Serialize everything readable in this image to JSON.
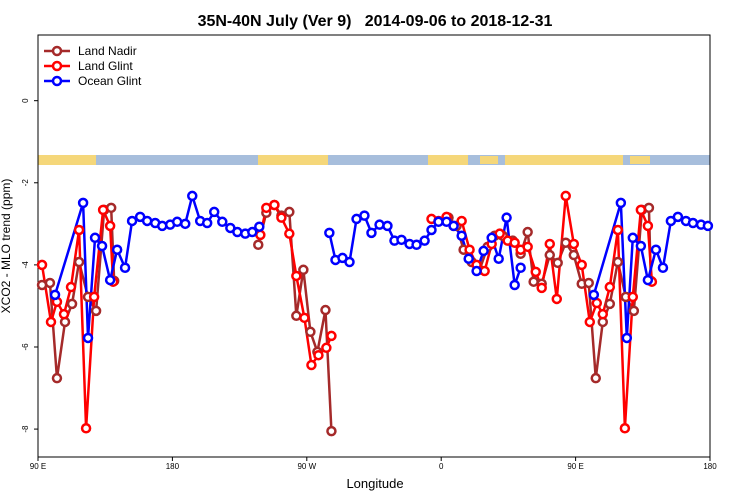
{
  "chart_data": {
    "type": "line",
    "title": "35N-40N July (Ver 9)   2014-09-06 to 2018-12-31",
    "x_label": "Longitude",
    "y_label": "XCO2 - MLO trend (ppm)",
    "xlim": [
      90,
      540
    ],
    "ylim": [
      -8.68,
      1.6
    ],
    "xticks": [
      {
        "value": 90,
        "label": "90 E"
      },
      180,
      {
        "value": 270,
        "label": "90 W"
      },
      {
        "value": 360,
        "label": "0"
      },
      {
        "value": 450,
        "label": "90 E"
      },
      {
        "value": 540,
        "label": "180"
      }
    ],
    "yticks": [
      0,
      -2,
      -4,
      -6,
      -8
    ],
    "legend": "top-left",
    "series": [
      {
        "name": "Land Nadir",
        "color": "#a52a2a",
        "x": [
          92.7,
          98.0,
          102.7,
          108.1,
          112.8,
          117.5,
          123.5,
          128.9,
          134.3,
          139.0,
          141.0,
          200,
          237.5,
          242.9,
          248.3,
          253.0,
          258.3,
          263.0,
          267.7,
          272.4,
          277.1,
          282.5,
          286.5,
          360,
          364.9,
          370.3,
          375.0,
          380.4,
          385.7,
          391.1,
          395.8,
          401.2,
          407.9,
          413.2,
          417.9,
          421.9,
          427.3,
          432.7,
          438.0,
          443.4,
          448.8,
          454.1,
          458.8,
          463.5,
          468.2,
          472.9,
          478.3,
          483.6,
          489.0,
          494.4,
          499.1,
          500.4
        ],
        "values": [
          -4.49,
          -4.44,
          -6.76,
          -5.39,
          -4.95,
          -3.93,
          -4.78,
          -5.12,
          -2.66,
          -2.61,
          -4.39,
          null,
          -3.51,
          -2.73,
          -2.54,
          -2.8,
          -2.71,
          -5.24,
          -4.12,
          -5.63,
          -6.12,
          -5.1,
          -8.05,
          null,
          -2.85,
          -3.05,
          -3.63,
          -3.93,
          -4.12,
          -3.56,
          -3.29,
          -3.29,
          -3.41,
          -3.73,
          -3.2,
          -4.41,
          -4.46,
          -3.76,
          -3.95,
          -3.46,
          -3.76,
          -4.46,
          -4.44,
          -6.76,
          -5.39,
          -4.95,
          -3.93,
          -4.78,
          -5.12,
          -2.66,
          -2.61,
          -4.39
        ]
      },
      {
        "name": "Land Glint",
        "color": "#ff0000",
        "x": [
          92.7,
          98.7,
          102.7,
          107.4,
          112.1,
          117.5,
          122.2,
          127.6,
          133.6,
          138.3,
          140.3,
          200,
          238.9,
          242.9,
          248.3,
          253.0,
          258.3,
          263.0,
          268.4,
          273.1,
          277.8,
          283.1,
          286.5,
          320,
          353.5,
          358.2,
          363.6,
          368.3,
          373.7,
          379.0,
          383.7,
          389.1,
          393.8,
          399.2,
          404.5,
          409.2,
          413.2,
          417.9,
          423.3,
          427.3,
          432.7,
          437.4,
          443.4,
          448.8,
          454.1,
          459.5,
          464.2,
          468.2,
          472.9,
          478.3,
          483.0,
          488.3,
          493.7,
          498.4,
          501.1
        ],
        "values": [
          -4.0,
          -5.39,
          -4.9,
          -5.2,
          -4.54,
          -3.15,
          -7.98,
          -4.78,
          -2.66,
          -3.05,
          -4.41,
          null,
          -3.27,
          -2.61,
          -2.54,
          -2.85,
          -3.24,
          -4.27,
          -5.29,
          -6.44,
          -6.2,
          -6.02,
          -5.73,
          null,
          -2.88,
          -2.93,
          -2.83,
          -3.05,
          -2.93,
          -3.63,
          -4.0,
          -4.15,
          -3.49,
          -3.24,
          -3.41,
          -3.46,
          -3.63,
          -3.56,
          -4.17,
          -4.56,
          -3.49,
          -4.83,
          -2.32,
          -3.49,
          -4.0,
          -5.39,
          -4.93,
          -5.2,
          -4.54,
          -3.15,
          -7.98,
          -4.78,
          -2.66,
          -3.05,
          -4.41
        ]
      },
      {
        "name": "Ocean Glint",
        "color": "#0000ff",
        "x": [
          101.4,
          120.2,
          123.5,
          128.2,
          132.9,
          138.3,
          143.0,
          148.3,
          153.0,
          158.4,
          163.1,
          168.5,
          173.2,
          178.5,
          183.2,
          188.6,
          193.3,
          198.6,
          203.3,
          208.0,
          213.4,
          218.8,
          223.5,
          228.8,
          233.5,
          238.2,
          280,
          285.1,
          289.2,
          293.9,
          298.6,
          303.3,
          308.6,
          313.3,
          318.7,
          324.0,
          328.7,
          333.4,
          338.8,
          343.5,
          348.9,
          353.5,
          358.2,
          363.6,
          368.3,
          373.7,
          378.4,
          383.7,
          388.4,
          393.8,
          398.5,
          403.8,
          409.2,
          413.2,
          470,
          462.2,
          480.3,
          484.3,
          488.3,
          493.7,
          498.4,
          503.8,
          508.5,
          513.8,
          518.5,
          523.9,
          528.6,
          534.0,
          538.6
        ],
        "values": [
          -4.73,
          -2.49,
          -5.78,
          -3.34,
          -3.54,
          -4.37,
          -3.63,
          -4.07,
          -2.93,
          -2.83,
          -2.93,
          -2.98,
          -3.05,
          -3.02,
          -2.95,
          -3.0,
          -2.32,
          -2.93,
          -2.98,
          -2.71,
          -2.95,
          -3.1,
          -3.2,
          -3.24,
          -3.2,
          -3.07,
          null,
          -3.22,
          -3.88,
          -3.83,
          -3.93,
          -2.88,
          -2.8,
          -3.22,
          -3.02,
          -3.05,
          -3.41,
          -3.39,
          -3.49,
          -3.51,
          -3.41,
          -3.15,
          -2.95,
          -2.95,
          -3.05,
          -3.29,
          -3.85,
          -4.15,
          -3.66,
          -3.34,
          -3.85,
          -2.85,
          -4.49,
          -4.07,
          null,
          -4.73,
          -2.49,
          -5.78,
          -3.34,
          -3.54,
          -4.37,
          -3.63,
          -4.07,
          -2.93,
          -2.83,
          -2.93,
          -2.98,
          -3.02,
          -3.05
        ]
      }
    ]
  }
}
